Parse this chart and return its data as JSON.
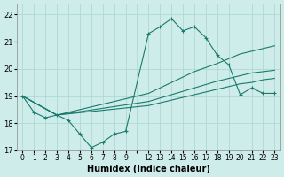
{
  "bg_color": "#ceecea",
  "grid_color": "#aed8d4",
  "line_color": "#1a7a6e",
  "xlabel": "Humidex (Indice chaleur)",
  "ylim": [
    17,
    22.4
  ],
  "yticks": [
    17,
    18,
    19,
    20,
    21,
    22
  ],
  "xlabel_fontsize": 7,
  "tick_fontsize": 6,
  "xtick_labels": [
    "0",
    "1",
    "2",
    "3",
    "4",
    "5",
    "6",
    "7",
    "8",
    "9",
    "",
    "12",
    "13",
    "14",
    "15",
    "16",
    "17",
    "18",
    "19",
    "20",
    "21",
    "22",
    "23"
  ],
  "line1_xi": [
    0,
    1,
    2,
    3,
    4,
    5,
    6,
    7,
    8,
    9,
    11,
    12,
    13,
    14,
    15,
    16,
    17,
    18,
    19,
    20,
    21,
    22
  ],
  "line1_y": [
    19.0,
    18.4,
    18.2,
    18.3,
    18.1,
    17.6,
    17.1,
    17.3,
    17.6,
    17.7,
    21.3,
    21.55,
    21.85,
    21.4,
    21.55,
    21.15,
    20.5,
    20.15,
    19.05,
    19.3,
    19.1,
    19.1
  ],
  "line2_xi": [
    0,
    3,
    11,
    13,
    15,
    17,
    19,
    20,
    21,
    22
  ],
  "line2_y": [
    19.0,
    18.3,
    19.1,
    19.5,
    19.9,
    20.2,
    20.55,
    20.65,
    20.75,
    20.85
  ],
  "line3_xi": [
    0,
    3,
    11,
    13,
    15,
    17,
    19,
    20,
    21,
    22
  ],
  "line3_y": [
    19.0,
    18.3,
    18.8,
    19.05,
    19.3,
    19.55,
    19.75,
    19.85,
    19.9,
    19.95
  ],
  "line4_xi": [
    0,
    3,
    11,
    13,
    15,
    17,
    19,
    20,
    21,
    22
  ],
  "line4_y": [
    19.0,
    18.3,
    18.65,
    18.85,
    19.05,
    19.25,
    19.45,
    19.5,
    19.6,
    19.65
  ]
}
